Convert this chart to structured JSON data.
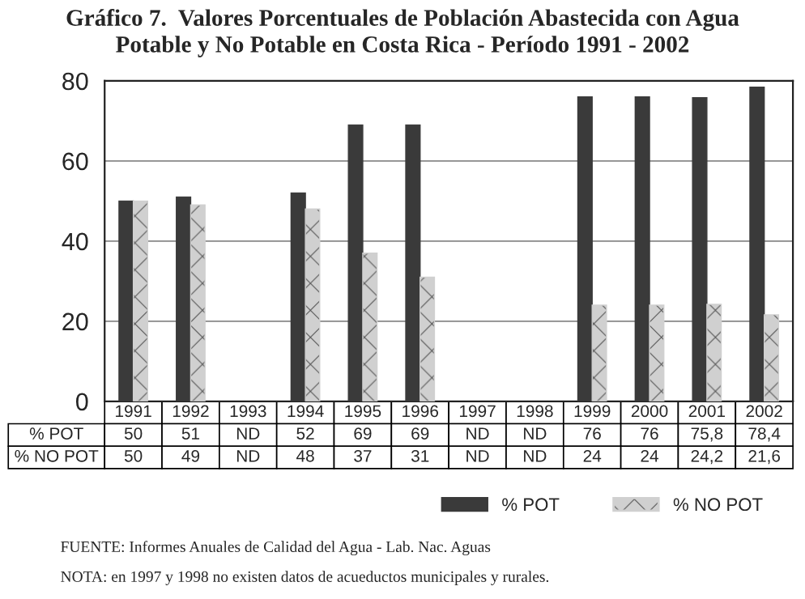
{
  "chart_data": {
    "type": "bar",
    "title": "Gráfico 7.  Valores Porcentuales de Población Abastecida con Agua\nPotable y No Potable en Costa Rica - Período 1991 - 2002",
    "categories": [
      "1991",
      "1992",
      "1993",
      "1994",
      "1995",
      "1996",
      "1997",
      "1998",
      "1999",
      "2000",
      "2001",
      "2002"
    ],
    "series": [
      {
        "name": "% POT",
        "color": "#3a3a3a",
        "values": [
          50,
          51,
          null,
          52,
          69,
          69,
          null,
          null,
          76,
          76,
          75.8,
          78.4
        ],
        "value_labels": [
          "50",
          "51",
          "ND",
          "52",
          "69",
          "69",
          "ND",
          "ND",
          "76",
          "76",
          "75,8",
          "78,4"
        ]
      },
      {
        "name": "% NO POT",
        "color": "#d0d0d0",
        "values": [
          50,
          49,
          null,
          48,
          37,
          31,
          null,
          null,
          24,
          24,
          24.2,
          21.6
        ],
        "value_labels": [
          "50",
          "49",
          "ND",
          "48",
          "37",
          "31",
          "ND",
          "ND",
          "24",
          "24",
          "24,2",
          "21,6"
        ]
      }
    ],
    "ylim": [
      0,
      80
    ],
    "yticks": [
      0,
      20,
      40,
      60,
      80
    ],
    "grid": "y",
    "legend": "bottom right",
    "annotations": [
      "FUENTE: Informes Anuales de Calidad del Agua - Lab. Nac. Aguas",
      "NOTA: en 1997 y 1998 no existen datos de acueductos municipales y rurales."
    ]
  }
}
